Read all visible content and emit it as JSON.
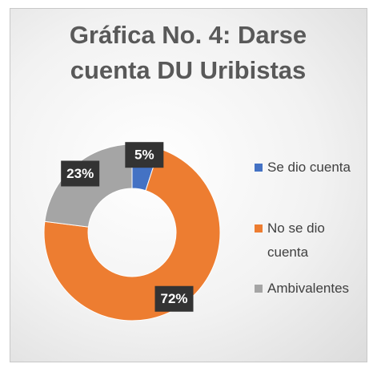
{
  "chart_data": {
    "type": "donut",
    "title": "Gráfica No. 4: Darse cuenta DU Uribistas",
    "categories": [
      "Se dio cuenta",
      "No se dio cuenta",
      "Ambivalentes"
    ],
    "values": [
      5,
      72,
      23
    ],
    "value_labels": [
      "5%",
      "72%",
      "23%"
    ],
    "colors": [
      "#4472c4",
      "#ed7d31",
      "#a5a5a5"
    ],
    "legend": "right"
  }
}
